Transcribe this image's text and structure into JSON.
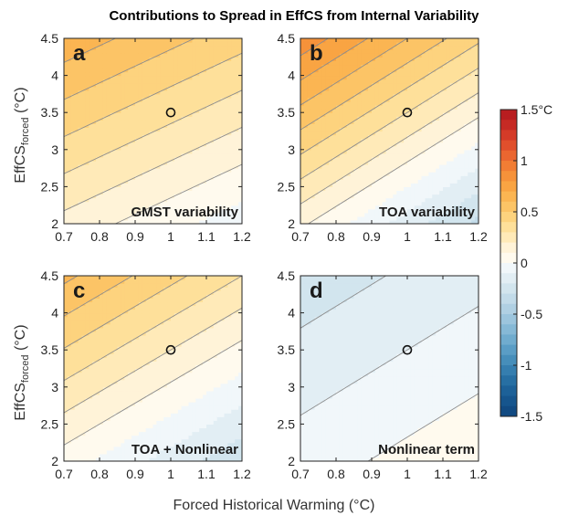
{
  "figure": {
    "title": "Contributions to Spread in EffCS from Internal Variability",
    "xlabel": "Forced Historical Warming (°C)",
    "ylabel_main": "EffCS",
    "ylabel_sub": "forced",
    "ylabel_unit": " (°C)"
  },
  "chart_data": [
    {
      "type": "heatmap",
      "panel": "a",
      "label": "GMST variability",
      "x_ticks": [
        "0.7",
        "0.8",
        "0.9",
        "1",
        "1.1",
        "1.2"
      ],
      "y_ticks": [
        "2",
        "2.5",
        "3",
        "3.5",
        "4",
        "4.5"
      ],
      "xlim": [
        0.7,
        1.2
      ],
      "ylim": [
        2,
        4.5
      ],
      "marker": {
        "x": 1.0,
        "y": 3.5
      },
      "field": {
        "c0": 0.33,
        "cx": -0.45,
        "cy": 0.2
      },
      "contour_levels": [
        0.1,
        0.2,
        0.3,
        0.4,
        0.5,
        0.6,
        0.7
      ]
    },
    {
      "type": "heatmap",
      "panel": "b",
      "label": "TOA variability",
      "x_ticks": [
        "0.7",
        "0.8",
        "0.9",
        "1",
        "1.1",
        "1.2"
      ],
      "y_ticks": [
        "2",
        "2.5",
        "3",
        "3.5",
        "4",
        "4.5"
      ],
      "xlim": [
        0.7,
        1.2
      ],
      "ylim": [
        2,
        4.5
      ],
      "marker": {
        "x": 1.0,
        "y": 3.5
      },
      "field": {
        "c0": 0.3,
        "cx": -0.9,
        "cy": 0.3
      },
      "contour_levels": [
        0.1,
        0.2,
        0.3,
        0.4,
        0.5,
        0.6,
        0.7,
        0.8,
        0.9
      ]
    },
    {
      "type": "heatmap",
      "panel": "c",
      "label": "TOA + Nonlinear",
      "x_ticks": [
        "0.7",
        "0.8",
        "0.9",
        "1",
        "1.1",
        "1.2"
      ],
      "y_ticks": [
        "2",
        "2.5",
        "3",
        "3.5",
        "4",
        "4.5"
      ],
      "xlim": [
        0.7,
        1.2
      ],
      "ylim": [
        2,
        4.5
      ],
      "marker": {
        "x": 1.0,
        "y": 3.5
      },
      "field": {
        "c0": 0.2,
        "cx": -0.65,
        "cy": 0.23
      },
      "contour_levels": [
        0.1,
        0.2,
        0.3,
        0.4,
        0.5,
        0.6
      ]
    },
    {
      "type": "heatmap",
      "panel": "d",
      "label": "Nonlinear term",
      "x_ticks": [
        "0.7",
        "0.8",
        "0.9",
        "1",
        "1.1",
        "1.2"
      ],
      "y_ticks": [
        "2",
        "2.5",
        "3",
        "3.5",
        "4",
        "4.5"
      ],
      "xlim": [
        0.7,
        1.2
      ],
      "ylim": [
        2,
        4.5
      ],
      "marker": {
        "x": 1.0,
        "y": 3.5
      },
      "field": {
        "c0": -0.1,
        "cx": 0.25,
        "cy": -0.085
      },
      "contour_levels": [
        -0.3,
        -0.2,
        -0.1,
        0.0
      ]
    }
  ],
  "colorbar": {
    "range": [
      -1.5,
      1.5
    ],
    "ticks": [
      {
        "value": 1.5,
        "label": "1.5°C"
      },
      {
        "value": 1,
        "label": "1"
      },
      {
        "value": 0.5,
        "label": "0.5"
      },
      {
        "value": 0,
        "label": "0"
      },
      {
        "value": -0.5,
        "label": "-0.5"
      },
      {
        "value": -1,
        "label": "-1"
      },
      {
        "value": -1.5,
        "label": "-1.5"
      }
    ],
    "step": 0.1,
    "colors_positive": [
      "#fffaee",
      "#fff3d8",
      "#ffeab8",
      "#fee09a",
      "#fdd37e",
      "#fcc466",
      "#fbb552",
      "#f9a443",
      "#f6923a",
      "#f17d34",
      "#ea6630",
      "#e04f2c",
      "#d43b28",
      "#c62a24",
      "#b81d20"
    ],
    "colors_negative": [
      "#f1f7fa",
      "#e2eef4",
      "#d2e5ee",
      "#c2dbe9",
      "#b0d0e3",
      "#9cc5dd",
      "#86b9d6",
      "#70acce",
      "#5a9dc5",
      "#468eba",
      "#357eaf",
      "#276fa3",
      "#1d6198",
      "#16558d",
      "#114a82"
    ]
  }
}
